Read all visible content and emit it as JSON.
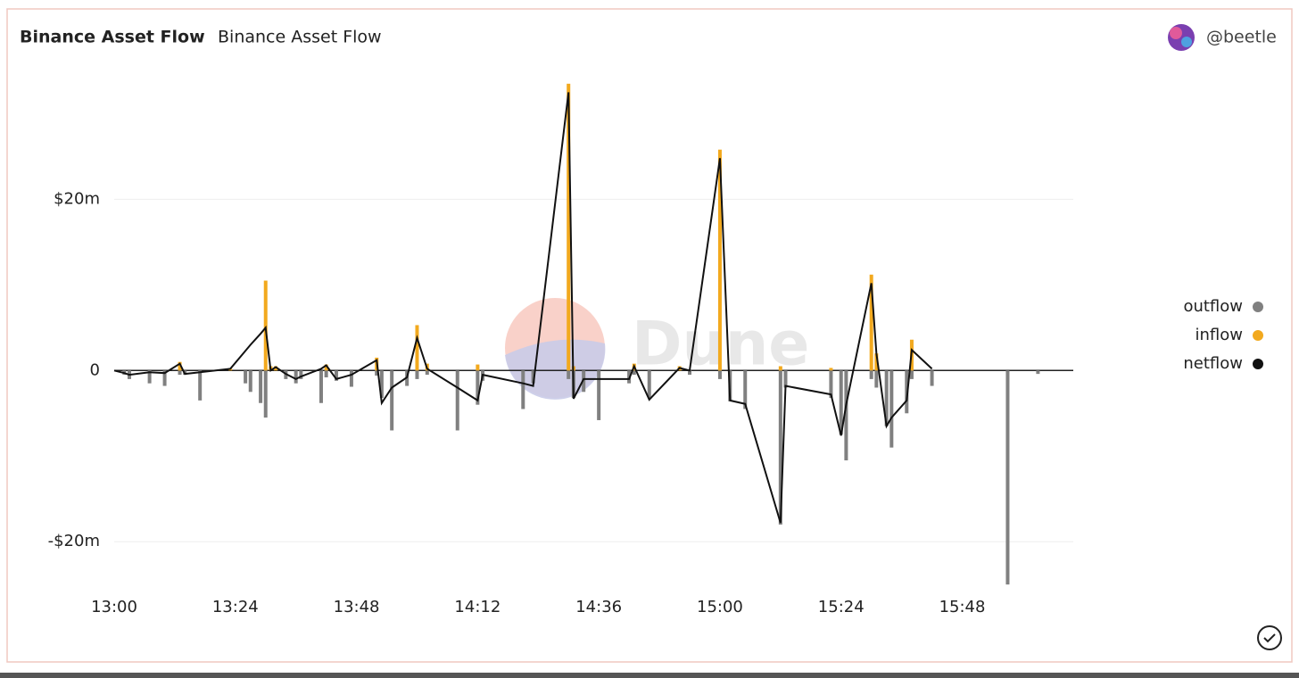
{
  "chart_data": {
    "type": "bar",
    "title": "Binance Asset Flow",
    "subtitle": "Binance Asset Flow",
    "author": "@beetle",
    "watermark": "Dune",
    "x": [
      "13:00",
      "13:02",
      "13:03",
      "13:07",
      "13:10",
      "13:13",
      "13:14",
      "13:17",
      "13:23",
      "13:26",
      "13:27",
      "13:29",
      "13:30",
      "13:31",
      "13:32",
      "13:34",
      "13:36",
      "13:37",
      "13:41",
      "13:42",
      "13:44",
      "13:47",
      "13:52",
      "13:53",
      "13:55",
      "13:58",
      "14:00",
      "14:02",
      "14:08",
      "14:12",
      "14:13",
      "14:21",
      "14:23",
      "14:30",
      "14:31",
      "14:33",
      "14:36",
      "14:42",
      "14:43",
      "14:46",
      "14:52",
      "14:54",
      "15:00",
      "15:02",
      "15:05",
      "15:12",
      "15:13",
      "15:22",
      "15:24",
      "15:25",
      "15:30",
      "15:31",
      "15:33",
      "15:34",
      "15:37",
      "15:38",
      "15:42",
      "15:57",
      "16:03"
    ],
    "series": [
      {
        "name": "outflow",
        "color": "#808080",
        "values": [
          null,
          -0.5,
          -1,
          -1.5,
          -1.8,
          -0.5,
          -0.5,
          -3.5,
          null,
          -1.5,
          -2.5,
          -3.8,
          -5.5,
          null,
          null,
          -1,
          -1.5,
          -1,
          -3.8,
          -0.8,
          -1.2,
          -1.9,
          -0.6,
          -3.2,
          -7,
          -1.8,
          -1,
          -0.5,
          -7,
          -4,
          -1.2,
          -4.5,
          -1.5,
          -1,
          -3.2,
          -2.5,
          -5.8,
          -1.5,
          -0.5,
          -3.2,
          null,
          -0.5,
          -1,
          -3.6,
          -4.5,
          -18,
          -2,
          -3.2,
          -7.5,
          -10.5,
          -1,
          -2,
          -6.5,
          -9,
          -5,
          -1,
          -1.8,
          -25,
          -0.4
        ]
      },
      {
        "name": "inflow",
        "color": "#f2a91e",
        "values": [
          null,
          null,
          null,
          null,
          null,
          1,
          null,
          null,
          0.2,
          null,
          null,
          null,
          10.5,
          0.5,
          0.5,
          null,
          null,
          null,
          null,
          0.7,
          null,
          null,
          1.5,
          null,
          null,
          null,
          5.3,
          0.8,
          null,
          0.7,
          null,
          null,
          null,
          33.5,
          0.5,
          null,
          null,
          null,
          0.8,
          null,
          0.5,
          null,
          25.8,
          null,
          null,
          0.5,
          null,
          0.3,
          null,
          null,
          11.2,
          2,
          null,
          null,
          null,
          3.6,
          null,
          null,
          null
        ]
      },
      {
        "name": "netflow",
        "color": "#111111",
        "values": [
          0,
          -0.3,
          -0.5,
          -0.2,
          -0.3,
          0.8,
          -0.4,
          -0.2,
          0.2,
          2.3,
          3,
          4.3,
          5,
          0,
          0.4,
          -0.4,
          -1,
          -0.7,
          0.2,
          0.6,
          -1,
          -0.5,
          1.2,
          -3.8,
          -2,
          -0.8,
          3.8,
          0.2,
          -2,
          -3.5,
          -0.5,
          -1.5,
          -1.8,
          32.5,
          -3.3,
          -1,
          -1,
          -1,
          0.5,
          -3.4,
          0.3,
          0,
          24.8,
          -3.5,
          -3.9,
          -17.8,
          -1.8,
          -2.8,
          -7.6,
          -4,
          10.2,
          2,
          -6.5,
          -5.5,
          -3.5,
          2.4,
          0.2,
          null,
          null
        ]
      }
    ],
    "xlim": [
      "13:00",
      "16:10"
    ],
    "xticks": [
      "13:00",
      "13:24",
      "13:48",
      "14:12",
      "14:36",
      "15:00",
      "15:24",
      "15:48"
    ],
    "ylim": [
      -25.5,
      33.9
    ],
    "yticks": [
      {
        "value": -20,
        "label": "-$20m"
      },
      0,
      {
        "value": 20,
        "label": "$20m"
      }
    ],
    "grid": true,
    "legend": "right"
  }
}
